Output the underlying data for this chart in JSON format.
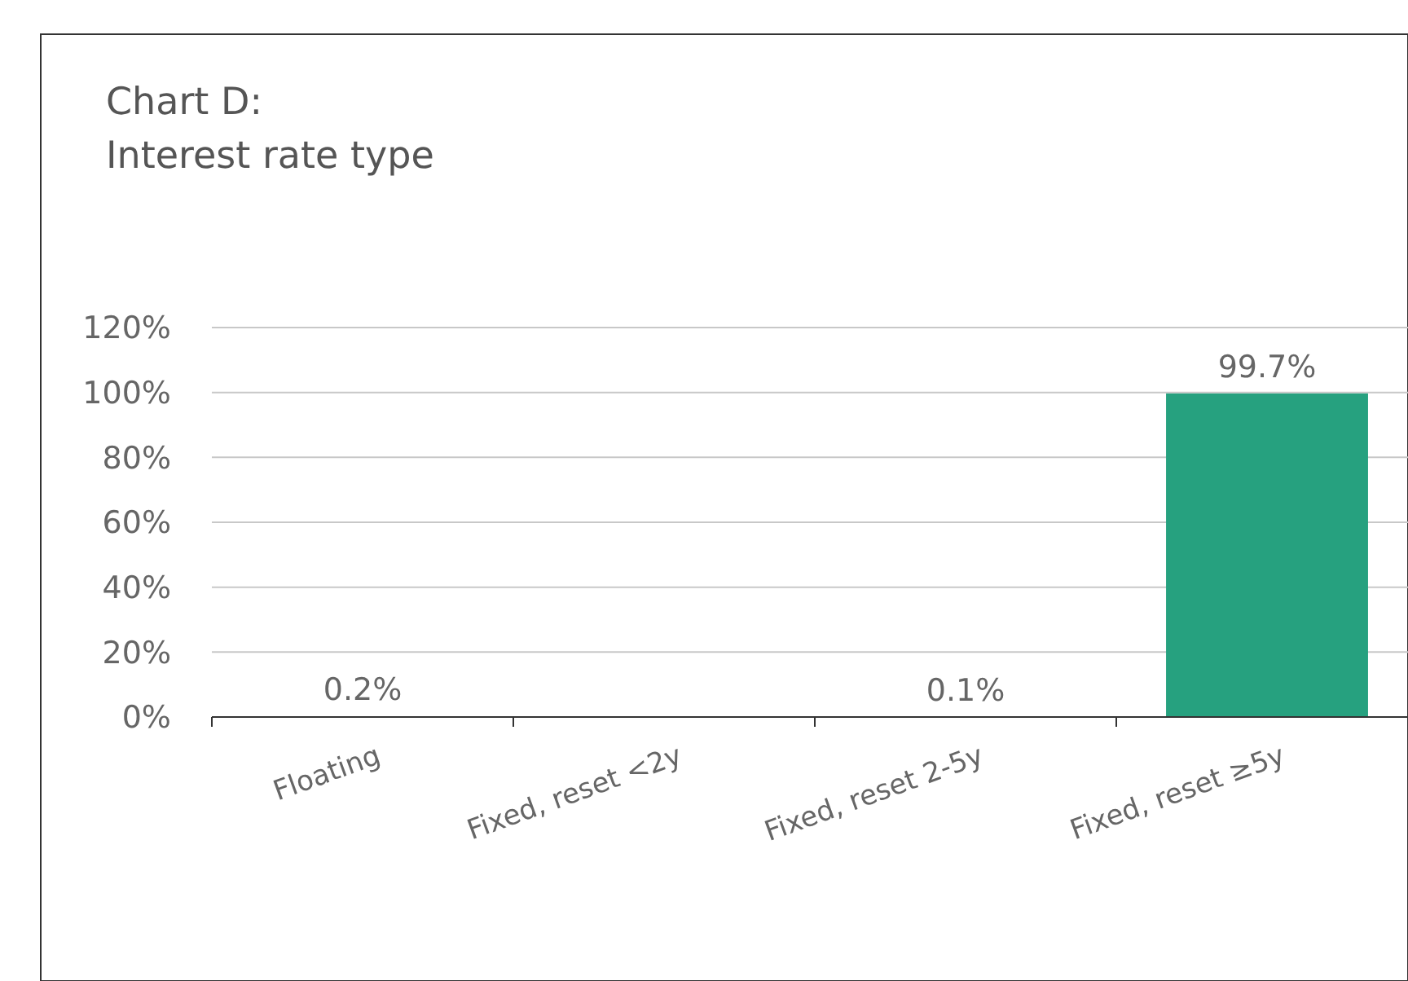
{
  "chart_data": {
    "type": "bar",
    "title": "Chart D:\nInterest rate type",
    "categories": [
      "Floating",
      "Fixed, reset <2y",
      "Fixed, reset 2-5y",
      "Fixed, reset ≥5y"
    ],
    "values": [
      0.2,
      null,
      0.1,
      99.7
    ],
    "value_labels": [
      "0.2%",
      null,
      "0.1%",
      "99.7%"
    ],
    "color": "#26a17f",
    "ylim": [
      0,
      120
    ],
    "yticks": [
      {
        "value": 0,
        "label": "0%"
      },
      {
        "value": 20,
        "label": "20%"
      },
      {
        "value": 40,
        "label": "40%"
      },
      {
        "value": 60,
        "label": "60%"
      },
      {
        "value": 80,
        "label": "80%"
      },
      {
        "value": 100,
        "label": "100%"
      },
      {
        "value": 120,
        "label": "120%"
      }
    ],
    "grid": "y"
  }
}
